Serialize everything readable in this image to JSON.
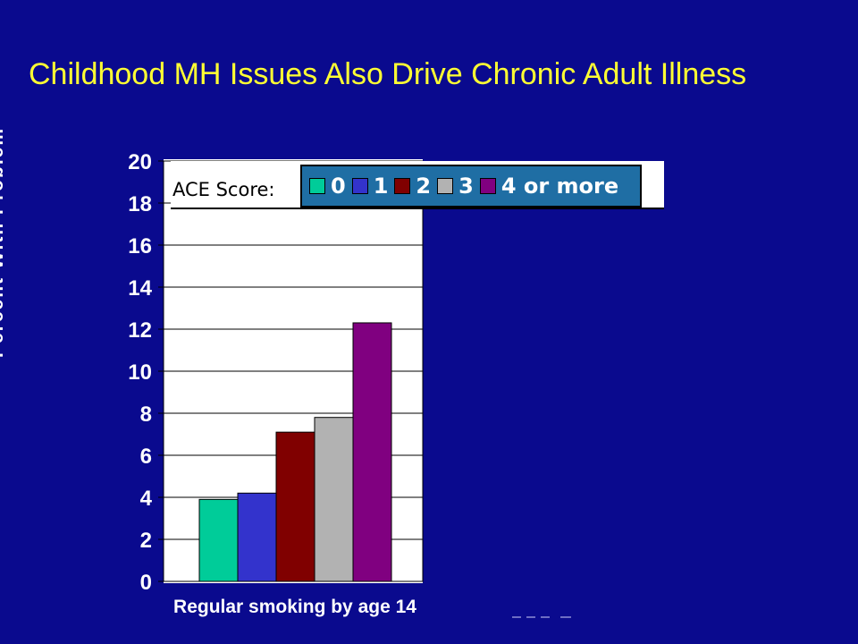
{
  "slide": {
    "title": "Childhood MH Issues Also Drive Chronic Adult Illness"
  },
  "colors": {
    "background": "#0a0a8e",
    "title": "#ffff33",
    "legend_fill": "#1f6ea4"
  },
  "chart_data": {
    "type": "bar",
    "categories": [
      "Regular smoking by age 14"
    ],
    "series": [
      {
        "name": "0",
        "values": [
          3.9
        ],
        "color": "#00cc99"
      },
      {
        "name": "1",
        "values": [
          4.2
        ],
        "color": "#3333cc"
      },
      {
        "name": "2",
        "values": [
          7.1
        ],
        "color": "#800000"
      },
      {
        "name": "3",
        "values": [
          7.8
        ],
        "color": "#b2b2b2"
      },
      {
        "name": "4 or more",
        "values": [
          12.3
        ],
        "color": "#800080"
      }
    ],
    "ylabel": "Percent With Problem",
    "ylim": [
      0,
      20
    ],
    "yticks": [
      0,
      2,
      4,
      6,
      8,
      10,
      12,
      14,
      16,
      18,
      20
    ],
    "grid": true,
    "legend": {
      "title": "ACE Score:",
      "placement": "top"
    }
  }
}
